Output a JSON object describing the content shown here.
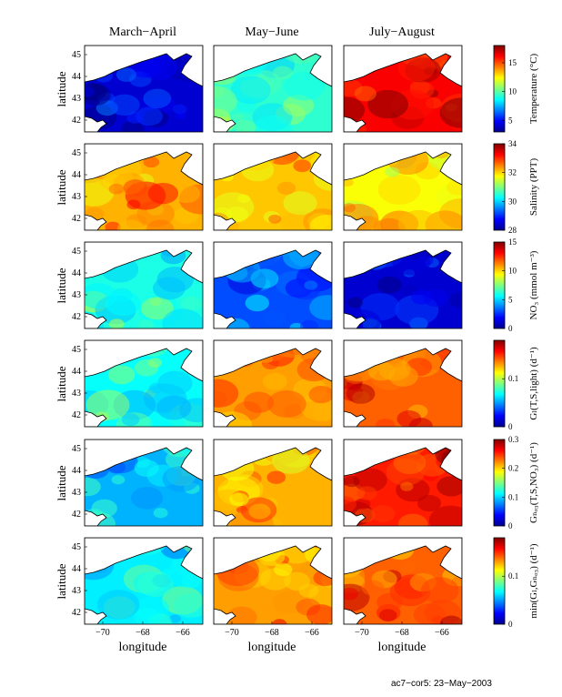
{
  "column_titles": [
    "March−April",
    "May−June",
    "July−August"
  ],
  "row_ylabel": "latitude",
  "xlabel": "longitude",
  "footer": "ac7−cor5: 23−May−2003",
  "lat_ticks": [
    "45",
    "44",
    "43",
    "42"
  ],
  "lon_ticks": [
    "−70",
    "−68",
    "−66"
  ],
  "colormap": "jet",
  "coast_color": "#000000",
  "land_color": "#ffffff",
  "chart_data": [
    {
      "type": "heatmap",
      "variable": "Temperature (°C)",
      "colorbar_label": "Temperature (°C)",
      "colorbar_ticks": [
        "15",
        "10",
        "5"
      ],
      "clim": [
        3,
        18
      ],
      "panels": [
        {
          "period": "March−April",
          "level": 0.08
        },
        {
          "period": "May−June",
          "level": 0.42
        },
        {
          "period": "July−August",
          "level": 0.88
        }
      ]
    },
    {
      "type": "heatmap",
      "variable": "Salinity (PPT)",
      "colorbar_label": "Salinity (PPT)",
      "colorbar_ticks": [
        "34",
        "32",
        "30",
        "28"
      ],
      "clim": [
        28,
        34
      ],
      "panels": [
        {
          "period": "March−April",
          "level": 0.7
        },
        {
          "period": "May−June",
          "level": 0.68
        },
        {
          "period": "July−August",
          "level": 0.62
        }
      ]
    },
    {
      "type": "heatmap",
      "variable": "NO3 (mmol m⁻³)",
      "colorbar_label": "NO₃ (mmol m⁻³)",
      "colorbar_ticks": [
        "15",
        "10",
        "5",
        "0"
      ],
      "clim": [
        0,
        15
      ],
      "panels": [
        {
          "period": "March−April",
          "level": 0.4
        },
        {
          "period": "May−June",
          "level": 0.2
        },
        {
          "period": "July−August",
          "level": 0.08
        }
      ]
    },
    {
      "type": "heatmap",
      "variable": "G_L(T,S,light) (d⁻¹)",
      "colorbar_label": "Gₗ(T,S,light) (d⁻¹)",
      "colorbar_ticks": [
        "0.1",
        "0"
      ],
      "clim": [
        0,
        0.18
      ],
      "panels": [
        {
          "period": "March−April",
          "level": 0.38
        },
        {
          "period": "May−June",
          "level": 0.72
        },
        {
          "period": "July−August",
          "level": 0.78
        }
      ]
    },
    {
      "type": "heatmap",
      "variable": "G_NO3(T,S,NO3) (d⁻¹)",
      "colorbar_label": "Gₙₒ₃(T,S,NO₃) (d⁻¹)",
      "colorbar_ticks": [
        "0.3",
        "0.2",
        "0.1",
        "0"
      ],
      "clim": [
        0,
        0.3
      ],
      "panels": [
        {
          "period": "March−April",
          "level": 0.3
        },
        {
          "period": "May−June",
          "level": 0.7
        },
        {
          "period": "July−August",
          "level": 0.85
        }
      ]
    },
    {
      "type": "heatmap",
      "variable": "min(G_L,G_NO3) (d⁻¹)",
      "colorbar_label": "min(Gₗ,Gₙₒ₃) (d⁻¹)",
      "colorbar_ticks": [
        "0.1",
        "0"
      ],
      "clim": [
        0,
        0.18
      ],
      "panels": [
        {
          "period": "March−April",
          "level": 0.36
        },
        {
          "period": "May−June",
          "level": 0.72
        },
        {
          "period": "July−August",
          "level": 0.78
        }
      ]
    }
  ]
}
